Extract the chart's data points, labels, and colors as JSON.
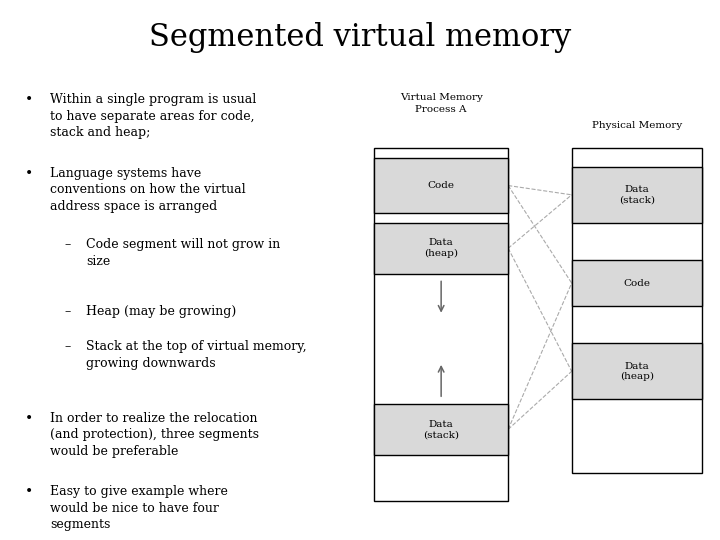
{
  "title": "Segmented virtual memory",
  "title_fontsize": 22,
  "title_font": "serif",
  "bg_color": "#ffffff",
  "text_color": "#000000",
  "font_size": 9.0,
  "vm_label": "Virtual Memory\nProcess A",
  "pm_label": "Physical Memory",
  "seg_color": "#d9d9d9",
  "line_color": "#aaaaaa",
  "arrow_color": "#666666"
}
